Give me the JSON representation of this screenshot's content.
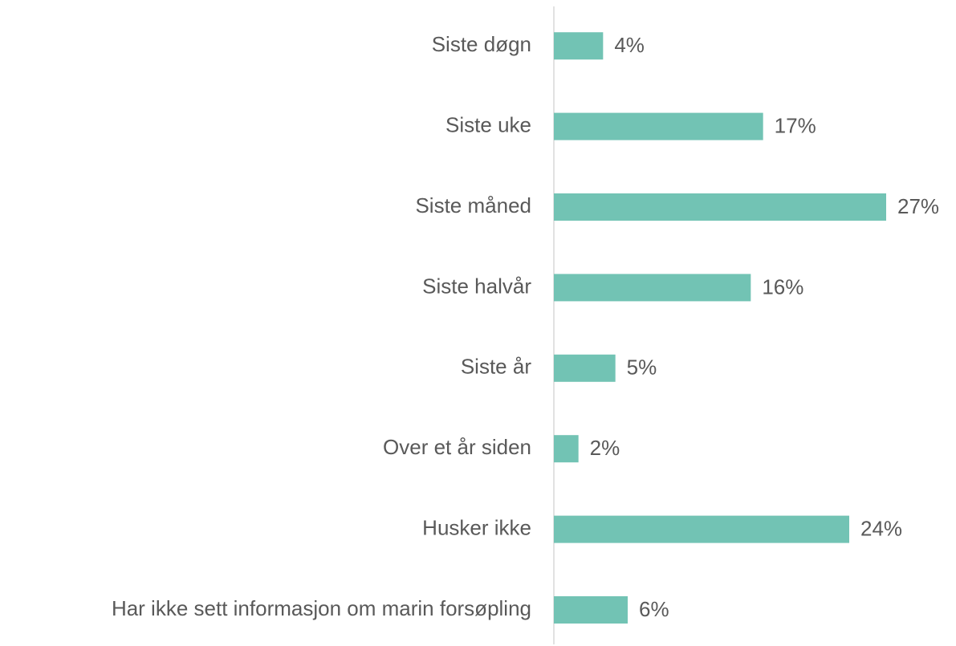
{
  "chart_data": {
    "type": "bar",
    "orientation": "horizontal",
    "categories": [
      "Siste døgn",
      "Siste uke",
      "Siste måned",
      "Siste halvår",
      "Siste år",
      "Over et år siden",
      "Husker ikke",
      "Har ikke sett informasjon om marin forsøpling"
    ],
    "values": [
      4,
      17,
      27,
      16,
      5,
      2,
      24,
      6
    ],
    "value_labels": [
      "4%",
      "17%",
      "27%",
      "16%",
      "5%",
      "2%",
      "24%",
      "6%"
    ],
    "color": "#72c3b4"
  }
}
